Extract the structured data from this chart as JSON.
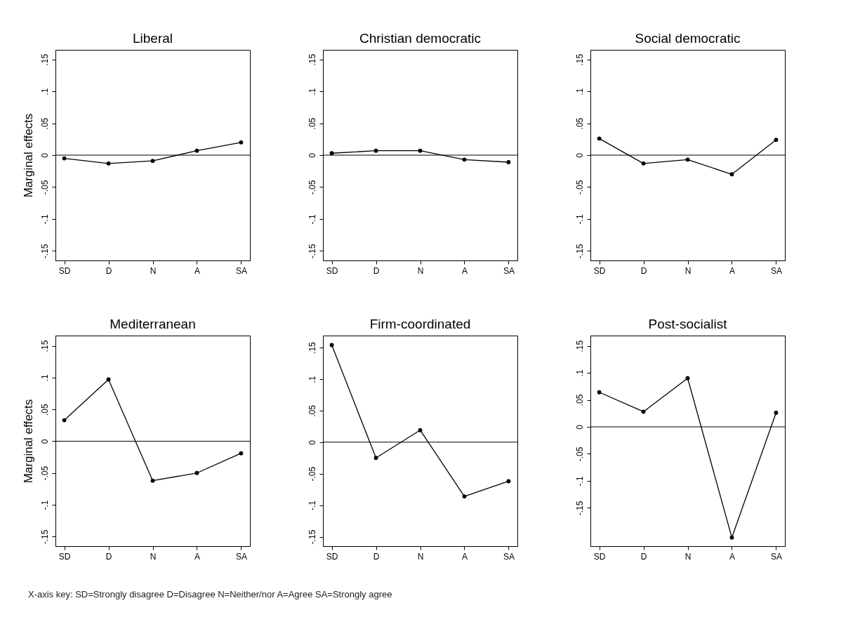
{
  "chart_data": [
    {
      "type": "line",
      "title": "Liberal",
      "ylabel": "Marginal effects",
      "categories": [
        "SD",
        "D",
        "N",
        "A",
        "SA"
      ],
      "series": [
        {
          "color": "#000000",
          "values": [
            -0.005,
            -0.013,
            -0.009,
            0.007,
            0.02
          ]
        }
      ],
      "ylim": [
        -0.165,
        0.165
      ],
      "yticks": [
        {
          "value": -0.15,
          "label": "-.15"
        },
        {
          "value": -0.1,
          "label": "-.1"
        },
        {
          "value": -0.05,
          "label": "-.05"
        },
        {
          "value": 0,
          "label": "0"
        },
        {
          "value": 0.05,
          "label": ".05"
        },
        {
          "value": 0.1,
          "label": ".1"
        },
        {
          "value": 0.15,
          "label": ".15"
        }
      ],
      "ref_lines": [
        {
          "axis": "y",
          "value": 0,
          "color": "#000000"
        }
      ],
      "marker": "circle",
      "grid": false,
      "annotations": [
        "X-axis key: SD=Strongly disagree  D=Disagree  N=Neither/nor  A=Agree  SA=Strongly agree"
      ]
    },
    {
      "type": "line",
      "title": "Christian democratic",
      "categories": [
        "SD",
        "D",
        "N",
        "A",
        "SA"
      ],
      "series": [
        {
          "color": "#000000",
          "values": [
            0.003,
            0.007,
            0.007,
            -0.007,
            -0.011
          ]
        }
      ],
      "ylim": [
        -0.165,
        0.165
      ],
      "yticks": [
        {
          "value": -0.15,
          "label": "-.15"
        },
        {
          "value": -0.1,
          "label": "-.1"
        },
        {
          "value": -0.05,
          "label": "-.05"
        },
        {
          "value": 0,
          "label": "0"
        },
        {
          "value": 0.05,
          "label": ".05"
        },
        {
          "value": 0.1,
          "label": ".1"
        },
        {
          "value": 0.15,
          "label": ".15"
        }
      ],
      "ref_lines": [
        {
          "axis": "y",
          "value": 0,
          "color": "#000000"
        }
      ],
      "marker": "circle",
      "grid": false
    },
    {
      "type": "line",
      "title": "Social democratic",
      "categories": [
        "SD",
        "D",
        "N",
        "A",
        "SA"
      ],
      "series": [
        {
          "color": "#000000",
          "values": [
            0.026,
            -0.013,
            -0.007,
            -0.03,
            0.024
          ]
        }
      ],
      "ylim": [
        -0.165,
        0.165
      ],
      "yticks": [
        {
          "value": -0.15,
          "label": "-.15"
        },
        {
          "value": -0.1,
          "label": "-.1"
        },
        {
          "value": -0.05,
          "label": "-.05"
        },
        {
          "value": 0,
          "label": "0"
        },
        {
          "value": 0.05,
          "label": ".05"
        },
        {
          "value": 0.1,
          "label": ".1"
        },
        {
          "value": 0.15,
          "label": ".15"
        }
      ],
      "ref_lines": [
        {
          "axis": "y",
          "value": 0,
          "color": "#000000"
        }
      ],
      "marker": "circle",
      "grid": false
    },
    {
      "type": "line",
      "title": "Mediterranean",
      "ylabel": "Marginal effects",
      "categories": [
        "SD",
        "D",
        "N",
        "A",
        "SA"
      ],
      "series": [
        {
          "color": "#000000",
          "values": [
            0.033,
            0.097,
            -0.062,
            -0.05,
            -0.019
          ]
        }
      ],
      "ylim": [
        -0.165,
        0.166
      ],
      "yticks": [
        {
          "value": -0.15,
          "label": "-.15"
        },
        {
          "value": -0.1,
          "label": "-.1"
        },
        {
          "value": -0.05,
          "label": "-.05"
        },
        {
          "value": 0,
          "label": "0"
        },
        {
          "value": 0.05,
          "label": ".05"
        },
        {
          "value": 0.1,
          "label": ".1"
        },
        {
          "value": 0.15,
          "label": ".15"
        }
      ],
      "ref_lines": [
        {
          "axis": "y",
          "value": 0,
          "color": "#000000"
        }
      ],
      "marker": "circle",
      "grid": false
    },
    {
      "type": "line",
      "title": "Firm-coordinated",
      "categories": [
        "SD",
        "D",
        "N",
        "A",
        "SA"
      ],
      "series": [
        {
          "color": "#000000",
          "values": [
            0.154,
            -0.025,
            0.019,
            -0.086,
            -0.062
          ]
        }
      ],
      "ylim": [
        -0.165,
        0.169
      ],
      "yticks": [
        {
          "value": -0.15,
          "label": "-.15"
        },
        {
          "value": -0.1,
          "label": "-.1"
        },
        {
          "value": -0.05,
          "label": "-.05"
        },
        {
          "value": 0,
          "label": "0"
        },
        {
          "value": 0.05,
          "label": ".05"
        },
        {
          "value": 0.1,
          "label": ".1"
        },
        {
          "value": 0.15,
          "label": ".15"
        }
      ],
      "ref_lines": [
        {
          "axis": "y",
          "value": 0,
          "color": "#000000"
        }
      ],
      "marker": "circle",
      "grid": false
    },
    {
      "type": "line",
      "title": "Post-socialist",
      "categories": [
        "SD",
        "D",
        "N",
        "A",
        "SA"
      ],
      "series": [
        {
          "color": "#000000",
          "values": [
            0.064,
            0.028,
            0.09,
            -0.205,
            0.026
          ]
        }
      ],
      "ylim": [
        -0.221,
        0.169
      ],
      "yticks": [
        {
          "value": -0.15,
          "label": "-.15"
        },
        {
          "value": -0.1,
          "label": "-.1"
        },
        {
          "value": -0.05,
          "label": "-.05"
        },
        {
          "value": 0,
          "label": "0"
        },
        {
          "value": 0.05,
          "label": ".05"
        },
        {
          "value": 0.1,
          "label": ".1"
        },
        {
          "value": 0.15,
          "label": ".15"
        }
      ],
      "ref_lines": [
        {
          "axis": "y",
          "value": 0,
          "color": "#000000"
        }
      ],
      "marker": "circle",
      "grid": false
    }
  ]
}
